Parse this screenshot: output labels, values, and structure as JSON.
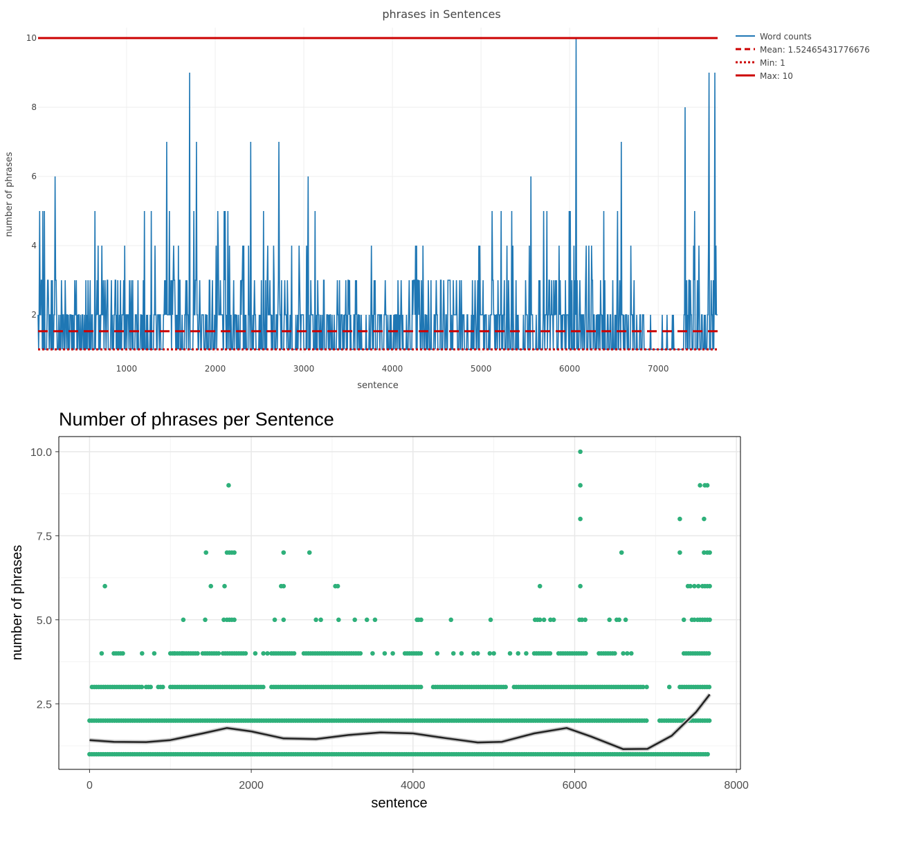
{
  "chart_data": [
    {
      "type": "line",
      "title": "phrases in Sentences",
      "xlabel": "sentence",
      "ylabel": "number of phrases",
      "xlim": [
        1,
        7670
      ],
      "ylim": [
        0.9,
        10.3
      ],
      "x_ticks": [
        "1000",
        "2000",
        "3000",
        "4000",
        "5000",
        "6000",
        "7000"
      ],
      "x_tick_values": [
        1000,
        2000,
        3000,
        4000,
        5000,
        6000,
        7000
      ],
      "y_ticks": [
        "2",
        "4",
        "6",
        "8",
        "10"
      ],
      "y_tick_values": [
        2,
        4,
        6,
        8,
        10
      ],
      "grid": true,
      "legend_position": "right",
      "series": [
        {
          "name": "Word counts",
          "color": "#1f77b4",
          "style": "solid",
          "note": "per-sentence phrase counts, 1 to 10; dense values 1-3 throughout",
          "peaks": [
            {
              "x": 190,
              "y": 6
            },
            {
              "x": 1450,
              "y": 7
            },
            {
              "x": 1710,
              "y": 9
            },
            {
              "x": 1790,
              "y": 7
            },
            {
              "x": 2400,
              "y": 7
            },
            {
              "x": 2720,
              "y": 7
            },
            {
              "x": 3050,
              "y": 6
            },
            {
              "x": 5560,
              "y": 6
            },
            {
              "x": 6070,
              "y": 10
            },
            {
              "x": 6580,
              "y": 7
            },
            {
              "x": 7300,
              "y": 8
            },
            {
              "x": 7570,
              "y": 9
            },
            {
              "x": 7640,
              "y": 9
            }
          ]
        },
        {
          "name": "Mean:  1.52465431776676",
          "value": 1.52465431776676,
          "color": "#cc0000",
          "style": "dash"
        },
        {
          "name": "Min:  1",
          "value": 1,
          "color": "#cc0000",
          "style": "dot"
        },
        {
          "name": "Max:  10",
          "value": 10,
          "color": "#cc0000",
          "style": "solid"
        }
      ]
    },
    {
      "type": "scatter",
      "title": "Number of phrases per Sentence",
      "xlabel": "sentence",
      "ylabel": "number of phrases",
      "xlim": [
        -380,
        8050
      ],
      "ylim": [
        0.55,
        10.45
      ],
      "x_ticks": [
        "0",
        "2000",
        "4000",
        "6000",
        "8000"
      ],
      "x_tick_values": [
        0,
        2000,
        4000,
        6000,
        8000
      ],
      "y_ticks": [
        "2.5",
        "5.0",
        "7.5",
        "10.0"
      ],
      "y_tick_values": [
        2.5,
        5.0,
        7.5,
        10.0
      ],
      "grid": true,
      "point_color": "#2eb07a",
      "points": [
        {
          "y": 1,
          "x": [
            [
              0,
              7670
            ]
          ]
        },
        {
          "y": 2,
          "x": [
            [
              0,
              6900
            ],
            [
              7050,
              7670
            ]
          ]
        },
        {
          "y": 3,
          "x": [
            [
              30,
              650
            ],
            [
              700,
              770
            ],
            [
              850,
              920
            ],
            [
              1000,
              2150
            ],
            [
              2250,
              4100
            ],
            [
              4250,
              5150
            ],
            [
              5250,
              6850
            ],
            [
              7300,
              7670
            ]
          ]
        },
        {
          "y": 3,
          "x": [
            6890,
            7170
          ]
        },
        {
          "y": 4,
          "x": [
            [
              300,
              420
            ],
            [
              1000,
              1350
            ],
            [
              1400,
              1600
            ],
            [
              1650,
              1950
            ],
            [
              2250,
              2550
            ],
            [
              2650,
              3350
            ],
            [
              3900,
              4100
            ],
            [
              5500,
              5700
            ],
            [
              5800,
              6150
            ],
            [
              6300,
              6500
            ],
            [
              7350,
              7670
            ]
          ]
        },
        {
          "y": 4,
          "x": [
            150,
            650,
            800,
            1050,
            1150,
            2050,
            2150,
            2200,
            3500,
            3650,
            3750,
            4300,
            4500,
            4600,
            4750,
            4800,
            4950,
            5000,
            5200,
            5300,
            5400,
            6600,
            6650,
            6700
          ]
        },
        {
          "y": 5,
          "x": [
            1160,
            1430,
            1660,
            1700,
            1730,
            1760,
            1790,
            2290,
            2400,
            2800,
            2860,
            3080,
            3280,
            3430,
            3530,
            4050,
            4070,
            4100,
            4470,
            4960,
            5510,
            5540,
            5570,
            5620,
            5700,
            5740,
            6060,
            6090,
            6130,
            6430,
            6520,
            6550,
            6630,
            7350,
            7450,
            7480,
            7520,
            7550,
            7580,
            7610,
            7640,
            7670
          ]
        },
        {
          "y": 6,
          "x": [
            190,
            1500,
            1670,
            2370,
            2400,
            3040,
            3070,
            5570,
            6070,
            7400,
            7430,
            7480,
            7530,
            7580,
            7610,
            7640,
            7670
          ]
        },
        {
          "y": 7,
          "x": [
            1440,
            1700,
            1730,
            1760,
            1790,
            2400,
            2720,
            6580,
            7300,
            7600,
            7640,
            7670
          ]
        },
        {
          "y": 8,
          "x": [
            6070,
            7300,
            7600
          ]
        },
        {
          "y": 9,
          "x": [
            1720,
            6070,
            7550,
            7610,
            7640
          ]
        },
        {
          "y": 10,
          "x": [
            6070
          ]
        }
      ],
      "smooth_line": {
        "color": "#222222",
        "x": [
          0,
          300,
          700,
          1000,
          1400,
          1700,
          2000,
          2400,
          2800,
          3200,
          3600,
          4000,
          4400,
          4800,
          5100,
          5500,
          5900,
          6200,
          6600,
          6900,
          7200,
          7500,
          7670
        ],
        "y": [
          1.42,
          1.37,
          1.36,
          1.42,
          1.62,
          1.78,
          1.68,
          1.47,
          1.45,
          1.57,
          1.65,
          1.62,
          1.48,
          1.35,
          1.37,
          1.62,
          1.78,
          1.53,
          1.15,
          1.16,
          1.55,
          2.25,
          2.78
        ]
      }
    }
  ],
  "legend": {
    "word_counts": "Word counts",
    "mean": "Mean:  1.52465431776676",
    "min": "Min:  1",
    "max": "Max:  10"
  }
}
